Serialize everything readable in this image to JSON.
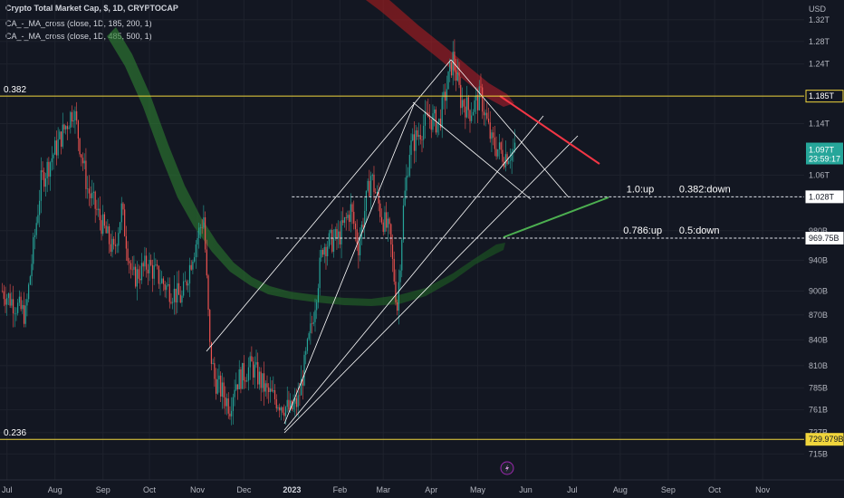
{
  "header": {
    "title": "Crypto Total Market Cap, $, 1D, CRYPTOCAP",
    "indicator1": "CA_-_MA_cross (close, 1D, 185, 200, 1)",
    "indicator2": "CA_-_MA_cross (close, 1D, 485, 500, 1)"
  },
  "colors": {
    "background": "#131722",
    "bull": "#26a69a",
    "bear": "#ef5350",
    "fib_line": "#f0d53c",
    "red_trend": "#f23645",
    "green_trend": "#4caf50",
    "price_badge": "#26a69a"
  },
  "chart_data": {
    "type": "candlestick",
    "y_unit": "USD",
    "y_scale": "log",
    "ylim": [
      700,
      1340
    ],
    "y_ticks": [
      "1.32T",
      "1.28T",
      "1.24T",
      "1.14T",
      "1.06T",
      "980B",
      "940B",
      "900B",
      "870B",
      "840B",
      "810B",
      "785B",
      "761B",
      "737B",
      "715B"
    ],
    "x_ticks": [
      "Jul",
      "Aug",
      "Sep",
      "Oct",
      "Nov",
      "Dec",
      "2023",
      "Feb",
      "Mar",
      "Apr",
      "May",
      "Jun",
      "Jul",
      "Aug",
      "Sep",
      "Oct",
      "Nov"
    ],
    "x_tick_dates": [
      "2022-07-01",
      "2022-08-01",
      "2022-09-01",
      "2022-10-01",
      "2022-11-01",
      "2022-12-01",
      "2023-01-01",
      "2023-02-01",
      "2023-03-01",
      "2023-04-01",
      "2023-05-01",
      "2023-06-01",
      "2023-07-01",
      "2023-08-01",
      "2023-09-01",
      "2023-10-01",
      "2023-11-01"
    ],
    "bold_tick": "2023",
    "current_price": {
      "label": "1.097T",
      "value": 1097,
      "countdown": "23:59:17"
    },
    "price_labels": [
      {
        "label": "1.185T",
        "value": 1185,
        "style": "outline-yellow"
      },
      {
        "label": "1.028T",
        "value": 1028,
        "style": "white"
      },
      {
        "label": "969.75B",
        "value": 969.75,
        "style": "white"
      },
      {
        "label": "729.979B",
        "value": 729.979,
        "style": "yellow"
      }
    ],
    "fib_levels": [
      {
        "label": "0.382",
        "value": 1185
      },
      {
        "label": "0.236",
        "value": 729.979
      }
    ],
    "annotations": [
      {
        "text": "1.0:up",
        "value": 1028,
        "date": "2023-08-05"
      },
      {
        "text": "0.382:down",
        "value": 1028,
        "date": "2023-09-08"
      },
      {
        "text": "0.786:up",
        "value": 969.75,
        "date": "2023-08-03"
      },
      {
        "text": "0.5:down",
        "value": 969.75,
        "date": "2023-09-08"
      }
    ],
    "dashed_levels": [
      {
        "value": 1028,
        "from": "2023-01-01"
      },
      {
        "value": 969.75,
        "from": "2022-12-22"
      }
    ],
    "ohlc_anchors": [
      {
        "date": "2022-06-28",
        "close": 900
      },
      {
        "date": "2022-07-13",
        "close": 870
      },
      {
        "date": "2022-07-23",
        "close": 1050
      },
      {
        "date": "2022-08-13",
        "close": 1165
      },
      {
        "date": "2022-08-22",
        "close": 1040
      },
      {
        "date": "2022-09-08",
        "close": 950
      },
      {
        "date": "2022-09-13",
        "close": 1010
      },
      {
        "date": "2022-09-20",
        "close": 915
      },
      {
        "date": "2022-09-30",
        "close": 935
      },
      {
        "date": "2022-10-12",
        "close": 905
      },
      {
        "date": "2022-10-22",
        "close": 890
      },
      {
        "date": "2022-10-29",
        "close": 950
      },
      {
        "date": "2022-11-05",
        "close": 1000
      },
      {
        "date": "2022-11-09",
        "close": 830
      },
      {
        "date": "2022-11-12",
        "close": 795
      },
      {
        "date": "2022-11-22",
        "close": 765
      },
      {
        "date": "2022-11-25",
        "close": 790
      },
      {
        "date": "2022-12-06",
        "close": 810
      },
      {
        "date": "2022-12-16",
        "close": 780
      },
      {
        "date": "2022-12-31",
        "close": 760
      },
      {
        "date": "2023-01-05",
        "close": 770
      },
      {
        "date": "2023-01-14",
        "close": 860
      },
      {
        "date": "2023-01-21",
        "close": 960
      },
      {
        "date": "2023-01-31",
        "close": 970
      },
      {
        "date": "2023-02-08",
        "close": 1010
      },
      {
        "date": "2023-02-13",
        "close": 960
      },
      {
        "date": "2023-02-21",
        "close": 1060
      },
      {
        "date": "2023-02-28",
        "close": 1000
      },
      {
        "date": "2023-03-05",
        "close": 975
      },
      {
        "date": "2023-03-10",
        "close": 880
      },
      {
        "date": "2023-03-14",
        "close": 1010
      },
      {
        "date": "2023-03-18",
        "close": 1100
      },
      {
        "date": "2023-03-30",
        "close": 1150
      },
      {
        "date": "2023-04-06",
        "close": 1140
      },
      {
        "date": "2023-04-15",
        "close": 1250
      },
      {
        "date": "2023-04-20",
        "close": 1180
      },
      {
        "date": "2023-04-26",
        "close": 1160
      },
      {
        "date": "2023-05-03",
        "close": 1185
      },
      {
        "date": "2023-05-10",
        "close": 1110
      },
      {
        "date": "2023-05-18",
        "close": 1090
      },
      {
        "date": "2023-05-25",
        "close": 1097
      }
    ]
  }
}
